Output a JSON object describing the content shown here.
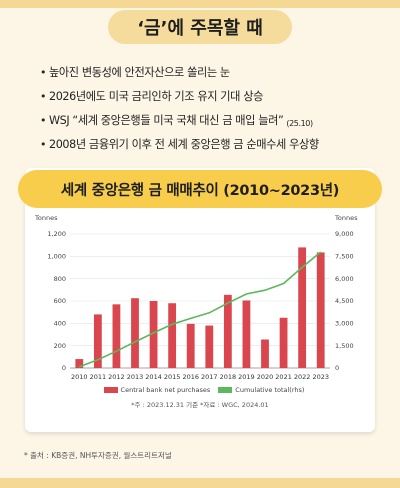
{
  "header": {
    "title": "‘금’에 주목할 때"
  },
  "bullets": [
    {
      "text": "높아진 변동성에 안전자산으로 쏠리는 눈",
      "note": ""
    },
    {
      "text": "2026년에도 미국 금리인하 기조 유지 기대 상승",
      "note": ""
    },
    {
      "text": "WSJ “세계 중앙은행들 미국 국채 대신 금 매입 늘려”",
      "note": "(25.10)"
    },
    {
      "text": "2008년 금융위기 이후 전 세계 중앙은행 금 순매수세 우상향",
      "note": ""
    }
  ],
  "chart_data": {
    "type": "bar",
    "title": "세계 중앙은행 금 매매추이 (2010~2023년)",
    "y_left_unit": "Tonnes",
    "y_right_unit": "Tonnes",
    "categories": [
      "2010",
      "2011",
      "2012",
      "2013",
      "2014",
      "2015",
      "2016",
      "2017",
      "2018",
      "2019",
      "2020",
      "2021",
      "2022",
      "2023"
    ],
    "ylim_left": [
      0,
      1200
    ],
    "yticks_left": [
      "0",
      "200",
      "400",
      "600",
      "800",
      "1,000",
      "1,200"
    ],
    "ylim_right": [
      0,
      9000
    ],
    "yticks_right": [
      "0",
      "1,500",
      "3,000",
      "4,500",
      "6,000",
      "7,500",
      "9,000"
    ],
    "series": [
      {
        "name": "Central bank net purchases",
        "kind": "bar",
        "axis": "left",
        "color": "#d9464d",
        "values": [
          80,
          480,
          570,
          625,
          600,
          580,
          395,
          380,
          655,
          605,
          255,
          450,
          1080,
          1035
        ]
      },
      {
        "name": "Cumulative total(rhs)",
        "kind": "line",
        "axis": "right",
        "color": "#5cb85c",
        "values": [
          80,
          560,
          1130,
          1755,
          2355,
          2935,
          3330,
          3710,
          4365,
          4970,
          5225,
          5675,
          6755,
          7790
        ]
      }
    ],
    "grid": true,
    "legend": "bottom",
    "note": "*주 : 2023.12.31 기준  *자료 : WGC, 2024.01"
  },
  "footer": {
    "source": "* 출처 : KB증권, NH투자증권, 월스트리트저널"
  }
}
